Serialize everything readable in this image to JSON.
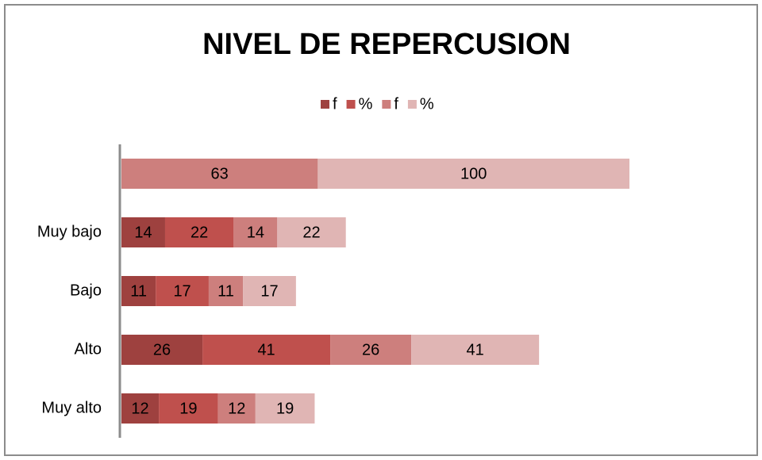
{
  "chart_data": {
    "type": "bar",
    "orientation": "horizontal",
    "stacked": true,
    "title": "NIVEL DE  REPERCUSION",
    "categories": [
      null,
      "Muy bajo",
      "Bajo",
      "Alto",
      "Muy alto"
    ],
    "series": [
      {
        "name": "f",
        "color": "#9e413f",
        "values": [
          null,
          14,
          11,
          26,
          12
        ]
      },
      {
        "name": "%",
        "color": "#bf504d",
        "values": [
          null,
          22,
          17,
          41,
          19
        ]
      },
      {
        "name": "f",
        "color": "#cd7f7d",
        "values": [
          63,
          14,
          11,
          26,
          12
        ]
      },
      {
        "name": "%",
        "color": "#e0b5b4",
        "values": [
          100,
          22,
          17,
          41,
          19
        ]
      }
    ],
    "legend": "top"
  }
}
